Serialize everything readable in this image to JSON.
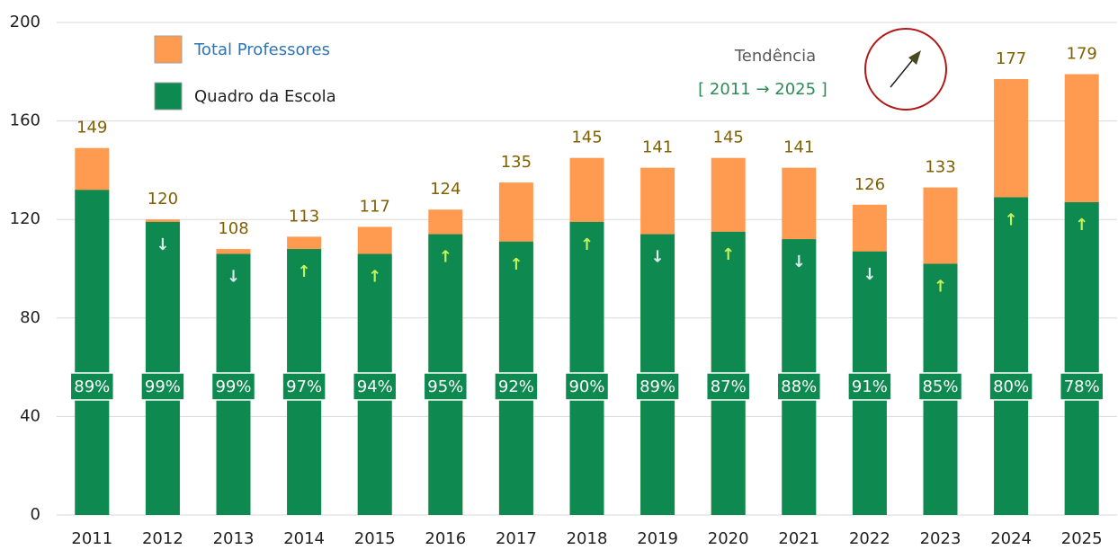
{
  "chart_data": {
    "type": "bar",
    "categories": [
      "2011",
      "2012",
      "2013",
      "2014",
      "2015",
      "2016",
      "2017",
      "2018",
      "2019",
      "2020",
      "2021",
      "2022",
      "2023",
      "2024",
      "2025"
    ],
    "series": [
      {
        "name": "Total Professores",
        "color": "#ff9b50",
        "values": [
          149,
          120,
          108,
          113,
          117,
          124,
          135,
          145,
          141,
          145,
          141,
          126,
          133,
          177,
          179
        ]
      },
      {
        "name": "Quadro da Escola",
        "color": "#0e8a50",
        "values": [
          132,
          119,
          106,
          108,
          106,
          114,
          111,
          119,
          114,
          115,
          112,
          107,
          102,
          129,
          127
        ]
      }
    ],
    "percent_labels": [
      "89%",
      "99%",
      "99%",
      "97%",
      "94%",
      "95%",
      "92%",
      "90%",
      "89%",
      "87%",
      "88%",
      "91%",
      "85%",
      "80%",
      "78%"
    ],
    "arrows": [
      null,
      "↓",
      "↓",
      "↑",
      "↑",
      "↑",
      "↑",
      "↑",
      "↓",
      "↑",
      "↓",
      "↓",
      "↑",
      "↑",
      "↑"
    ],
    "annotations": [
      "Tendência",
      "[ 2011 → 2025 ]"
    ],
    "ylim": [
      0,
      200
    ],
    "yticks": [
      0,
      40,
      80,
      120,
      160,
      200
    ],
    "grid": true
  }
}
